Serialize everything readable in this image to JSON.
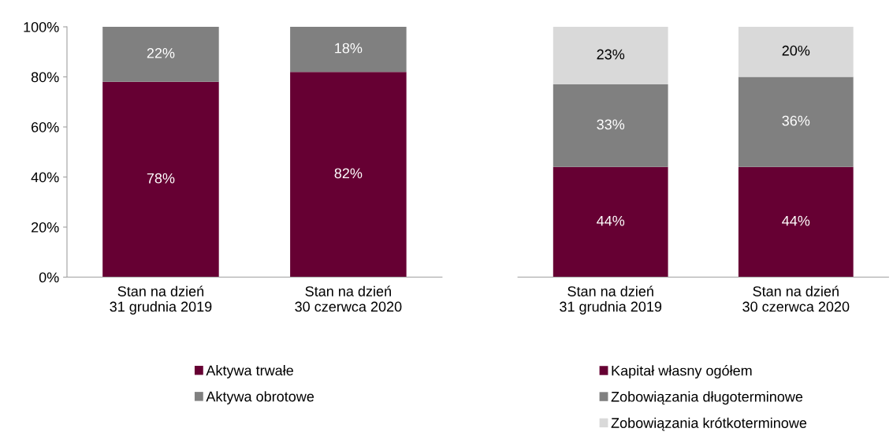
{
  "chart_data": [
    {
      "type": "bar",
      "stacked": true,
      "categories": [
        "Stan na dzień\n31 grudnia 2019",
        "Stan na dzień\n30 czerwca 2020"
      ],
      "ylim": [
        0,
        100
      ],
      "yticks": [
        {
          "value": 0,
          "label": "0%"
        },
        {
          "value": 20,
          "label": "20%"
        },
        {
          "value": 40,
          "label": "40%"
        },
        {
          "value": 60,
          "label": "60%"
        },
        {
          "value": 80,
          "label": "80%"
        },
        {
          "value": 100,
          "label": "100%"
        }
      ],
      "legend": "bottom",
      "grid": false,
      "series": [
        {
          "name": "Aktywa trwałe",
          "color": "#660033",
          "values": [
            78,
            82
          ],
          "value_labels": [
            "78%",
            "82%"
          ]
        },
        {
          "name": "Aktywa obrotowe",
          "color": "#808080",
          "values": [
            22,
            18
          ],
          "value_labels": [
            "22%",
            "18%"
          ]
        }
      ]
    },
    {
      "type": "bar",
      "stacked": true,
      "categories": [
        "Stan na dzień\n31 grudnia 2019",
        "Stan na dzień\n30 czerwca 2020"
      ],
      "ylim": [
        0,
        100
      ],
      "legend": "bottom",
      "grid": false,
      "series": [
        {
          "name": "Kapitał własny ogółem",
          "color": "#660033",
          "values": [
            44,
            44
          ],
          "value_labels": [
            "44%",
            "44%"
          ]
        },
        {
          "name": "Zobowiązania długoterminowe",
          "color": "#808080",
          "values": [
            33,
            36
          ],
          "value_labels": [
            "33%",
            "36%"
          ]
        },
        {
          "name": "Zobowiązania krótkoterminowe",
          "color": "#d9d9d9",
          "values": [
            23,
            20
          ],
          "value_labels": [
            "23%",
            "20%"
          ]
        }
      ]
    }
  ]
}
